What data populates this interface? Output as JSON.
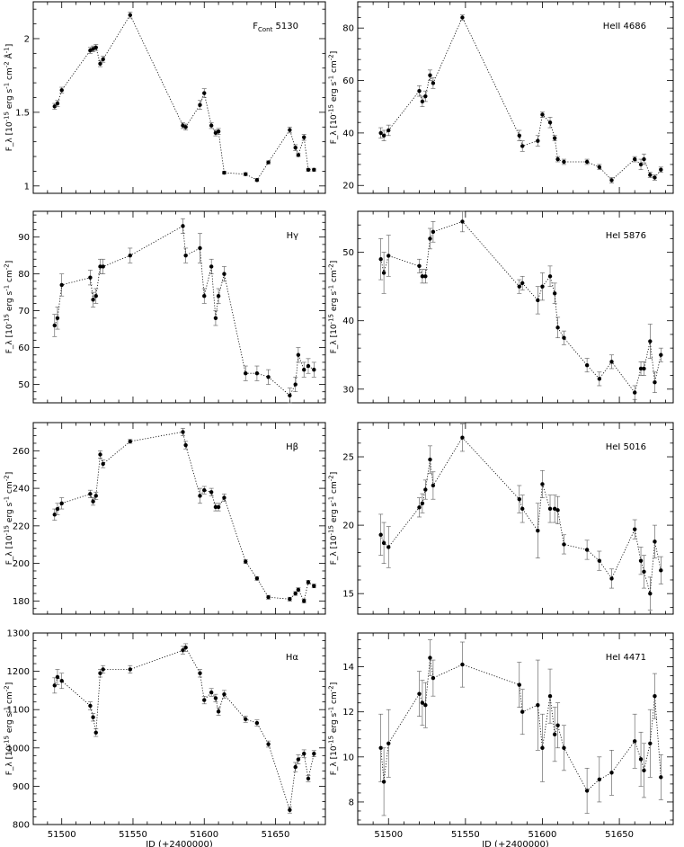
{
  "chart_data": [
    {
      "type": "scatter",
      "title": "F_Cont 5130",
      "ylabel": "F_λ [10^-15 erg s^-1 cm^-2 Å^-1]",
      "xlim": [
        51480,
        51685
      ],
      "ylim": [
        0.95,
        2.25
      ],
      "yticks": [
        1,
        1.5,
        2
      ],
      "xticks": [
        51500,
        51550,
        51600,
        51650
      ],
      "grid": false,
      "x": [
        51495,
        51497,
        51500,
        51520,
        51522,
        51524,
        51527,
        51529,
        51548,
        51585,
        51587,
        51597,
        51600,
        51605,
        51608,
        51610,
        51614,
        51629,
        51637,
        51645,
        51660,
        51664,
        51666,
        51670,
        51673,
        51677
      ],
      "y": [
        1.54,
        1.56,
        1.65,
        1.92,
        1.93,
        1.94,
        1.83,
        1.86,
        2.16,
        1.41,
        1.4,
        1.55,
        1.63,
        1.41,
        1.36,
        1.37,
        1.09,
        1.08,
        1.04,
        1.16,
        1.38,
        1.26,
        1.21,
        1.33,
        1.11,
        1.11
      ],
      "err": [
        0.02,
        0.02,
        0.02,
        0.02,
        0.02,
        0.02,
        0.02,
        0.02,
        0.02,
        0.02,
        0.02,
        0.03,
        0.03,
        0.02,
        0.02,
        0.02,
        0.01,
        0.01,
        0.01,
        0.01,
        0.02,
        0.02,
        0.01,
        0.02,
        0.01,
        0.01
      ]
    },
    {
      "type": "scatter",
      "title": "HeII 4686",
      "ylabel": "F_λ [10^-15 erg s^-1 cm^-2]",
      "xlim": [
        51480,
        51685
      ],
      "ylim": [
        17,
        90
      ],
      "yticks": [
        20,
        40,
        60,
        80
      ],
      "xticks": [
        51500,
        51550,
        51600,
        51650
      ],
      "grid": false,
      "x": [
        51495,
        51497,
        51500,
        51520,
        51522,
        51524,
        51527,
        51529,
        51548,
        51585,
        51587,
        51597,
        51600,
        51605,
        51608,
        51610,
        51614,
        51629,
        51637,
        51645,
        51660,
        51664,
        51666,
        51670,
        51673,
        51677
      ],
      "y": [
        40,
        39,
        41,
        56,
        52,
        54,
        62,
        59,
        84,
        39,
        35,
        37,
        47,
        44,
        38,
        30,
        29,
        29,
        27,
        22,
        30,
        28,
        30,
        24,
        23,
        26
      ],
      "err": [
        2,
        2,
        2,
        2,
        2,
        2,
        2,
        2,
        1,
        2,
        2,
        2,
        1,
        2,
        1,
        1,
        1,
        1,
        1,
        1,
        1,
        2,
        2,
        1,
        1,
        1
      ]
    },
    {
      "type": "scatter",
      "title": "Hγ",
      "ylabel": "F_λ [10^-15 erg s^-1 cm^-2]",
      "xlim": [
        51480,
        51685
      ],
      "ylim": [
        45,
        97
      ],
      "yticks": [
        50,
        60,
        70,
        80,
        90
      ],
      "xticks": [
        51500,
        51550,
        51600,
        51650
      ],
      "grid": false,
      "x": [
        51495,
        51497,
        51500,
        51520,
        51522,
        51524,
        51527,
        51529,
        51548,
        51585,
        51587,
        51597,
        51600,
        51605,
        51608,
        51610,
        51614,
        51629,
        51637,
        51645,
        51660,
        51664,
        51666,
        51670,
        51673,
        51677
      ],
      "y": [
        66,
        68,
        77,
        79,
        73,
        74,
        82,
        82,
        85,
        93,
        85,
        87,
        74,
        82,
        68,
        74,
        80,
        53,
        53,
        52,
        47,
        50,
        58,
        54,
        55,
        54
      ],
      "err": [
        3,
        3,
        3,
        2,
        2,
        2,
        2,
        2,
        2,
        2,
        2,
        4,
        2,
        2,
        2,
        2,
        2,
        2,
        2,
        2,
        2,
        2,
        2,
        2,
        2,
        2
      ]
    },
    {
      "type": "scatter",
      "title": "HeI 5876",
      "ylabel": "F_λ [10^-15 erg s^-1 cm^-2]",
      "xlim": [
        51480,
        51685
      ],
      "ylim": [
        28,
        56
      ],
      "yticks": [
        30,
        40,
        50
      ],
      "xticks": [
        51500,
        51550,
        51600,
        51650
      ],
      "grid": false,
      "x": [
        51495,
        51497,
        51500,
        51520,
        51522,
        51524,
        51527,
        51529,
        51548,
        51585,
        51587,
        51597,
        51600,
        51605,
        51608,
        51610,
        51614,
        51629,
        51637,
        51645,
        51660,
        51664,
        51666,
        51670,
        51673,
        51677
      ],
      "y": [
        49,
        47,
        49.5,
        48,
        46.5,
        46.5,
        52,
        53,
        54.5,
        45,
        45.5,
        43,
        45,
        46.5,
        44,
        39,
        37.5,
        33.5,
        31.5,
        34,
        29.5,
        33,
        33,
        37,
        31,
        35
      ],
      "err": [
        3,
        3,
        3,
        1,
        1,
        1,
        1.5,
        1.5,
        1.5,
        1,
        1,
        2,
        2,
        1.5,
        1.5,
        1.5,
        1,
        1,
        1,
        1,
        1,
        1,
        1,
        2.5,
        1.5,
        1
      ]
    },
    {
      "type": "scatter",
      "title": "Hβ",
      "ylabel": "F_λ [10^-15 erg s^-1 cm^-2]",
      "xlim": [
        51480,
        51685
      ],
      "ylim": [
        173,
        275
      ],
      "yticks": [
        180,
        200,
        220,
        240,
        260
      ],
      "xticks": [
        51500,
        51550,
        51600,
        51650
      ],
      "grid": false,
      "x": [
        51495,
        51497,
        51500,
        51520,
        51522,
        51524,
        51527,
        51529,
        51548,
        51585,
        51587,
        51597,
        51600,
        51605,
        51608,
        51610,
        51614,
        51629,
        51637,
        51645,
        51660,
        51664,
        51666,
        51670,
        51673,
        51677
      ],
      "y": [
        226,
        229,
        232,
        237,
        233,
        236,
        258,
        253,
        265,
        270,
        263,
        236,
        239,
        238,
        230,
        230,
        235,
        201,
        192,
        182,
        181,
        184,
        186,
        180,
        190,
        188
      ],
      "err": [
        3,
        3,
        3,
        2,
        2,
        2,
        2,
        2,
        1,
        2,
        2,
        4,
        2,
        2,
        2,
        2,
        2,
        1,
        1,
        1,
        1,
        1,
        1,
        1,
        1,
        1
      ]
    },
    {
      "type": "scatter",
      "title": "HeI 5016",
      "ylabel": "F_λ [10^-15 erg s^-1 cm^-2]",
      "xlim": [
        51480,
        51685
      ],
      "ylim": [
        13.5,
        27.5
      ],
      "yticks": [
        15,
        20,
        25
      ],
      "xticks": [
        51500,
        51550,
        51600,
        51650
      ],
      "grid": false,
      "x": [
        51495,
        51497,
        51500,
        51520,
        51522,
        51524,
        51527,
        51529,
        51548,
        51585,
        51587,
        51597,
        51600,
        51605,
        51608,
        51610,
        51614,
        51629,
        51637,
        51645,
        51660,
        51664,
        51666,
        51670,
        51673,
        51677
      ],
      "y": [
        19.3,
        18.7,
        18.4,
        21.3,
        21.6,
        22.6,
        24.8,
        22.9,
        26.4,
        21.9,
        21.2,
        19.6,
        23,
        21.2,
        21.2,
        21.1,
        18.6,
        18.2,
        17.4,
        16.1,
        19.7,
        17.4,
        16.6,
        15,
        18.8,
        16.7
      ],
      "err": [
        1.5,
        1.5,
        1.5,
        0.7,
        0.7,
        0.7,
        1,
        1,
        1,
        1,
        1,
        2,
        1,
        1,
        1,
        1,
        0.7,
        0.7,
        0.7,
        0.7,
        0.7,
        1,
        1.2,
        1.2,
        1.2,
        1
      ]
    },
    {
      "type": "scatter",
      "title": "Hα",
      "ylabel": "F_λ [10^-15 erg s^-1 cm^-2]",
      "xlabel": "JD (+2400000)",
      "xlim": [
        51480,
        51685
      ],
      "ylim": [
        800,
        1300
      ],
      "yticks": [
        800,
        900,
        1000,
        1100,
        1200,
        1300
      ],
      "xticks": [
        51500,
        51550,
        51600,
        51650
      ],
      "grid": false,
      "x": [
        51495,
        51497,
        51500,
        51520,
        51522,
        51524,
        51527,
        51529,
        51548,
        51585,
        51587,
        51597,
        51600,
        51605,
        51608,
        51610,
        51614,
        51629,
        51637,
        51645,
        51660,
        51664,
        51666,
        51670,
        51673,
        51677
      ],
      "y": [
        1163,
        1185,
        1175,
        1110,
        1080,
        1040,
        1195,
        1205,
        1205,
        1255,
        1262,
        1195,
        1125,
        1145,
        1130,
        1095,
        1140,
        1075,
        1065,
        1010,
        838,
        950,
        970,
        985,
        920,
        985
      ],
      "err": [
        20,
        20,
        20,
        10,
        10,
        10,
        10,
        10,
        10,
        10,
        10,
        10,
        10,
        10,
        10,
        10,
        10,
        8,
        8,
        8,
        8,
        12,
        12,
        10,
        8,
        8
      ]
    },
    {
      "type": "scatter",
      "title": "HeI 4471",
      "ylabel": "F_λ [10^-15 erg s^-1 cm^-2]",
      "xlabel": "JD (+2400000)",
      "xlim": [
        51480,
        51685
      ],
      "ylim": [
        7,
        15.5
      ],
      "yticks": [
        8,
        10,
        12,
        14
      ],
      "xticks": [
        51500,
        51550,
        51600,
        51650
      ],
      "grid": false,
      "x": [
        51495,
        51497,
        51500,
        51520,
        51522,
        51524,
        51527,
        51529,
        51548,
        51585,
        51587,
        51597,
        51600,
        51605,
        51608,
        51610,
        51614,
        51629,
        51637,
        51645,
        51660,
        51664,
        51666,
        51670,
        51673,
        51677
      ],
      "y": [
        10.4,
        8.9,
        10.6,
        12.8,
        12.4,
        12.3,
        14.4,
        13.5,
        14.1,
        13.2,
        12,
        12.3,
        10.4,
        12.7,
        11,
        11.4,
        10.4,
        8.5,
        9,
        9.3,
        10.7,
        9.9,
        9.4,
        10.6,
        12.7,
        9.1
      ],
      "err": [
        1.5,
        1.5,
        1.5,
        1,
        1,
        1,
        0.8,
        0.8,
        1,
        1,
        1,
        2,
        1.5,
        1.2,
        1.2,
        1,
        1,
        1,
        1,
        1,
        1.2,
        1.2,
        1.2,
        1.5,
        1,
        1
      ]
    }
  ]
}
